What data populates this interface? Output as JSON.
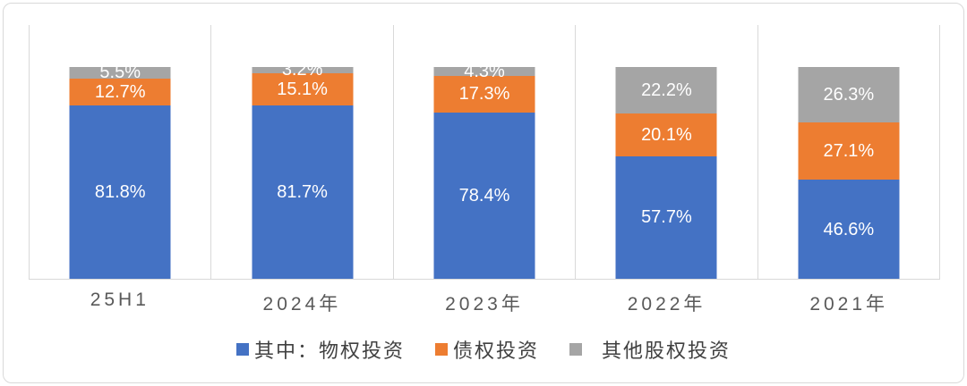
{
  "chart_data": {
    "type": "bar",
    "stacked": true,
    "percent_stacked": true,
    "title": "",
    "categories": [
      "25H1",
      "2024年",
      "2023年",
      "2022年",
      "2021年"
    ],
    "series": [
      {
        "name": "其中：物权投资",
        "color": "#4472C4",
        "values": [
          81.8,
          81.7,
          78.4,
          57.7,
          46.6
        ]
      },
      {
        "name": "债权投资",
        "color": "#ED7D31",
        "values": [
          12.7,
          15.1,
          17.3,
          20.1,
          27.1
        ]
      },
      {
        "name": "其他股权投资",
        "color": "#A5A5A5",
        "values": [
          5.5,
          3.2,
          4.3,
          22.2,
          26.3
        ]
      }
    ],
    "value_suffix": "%",
    "data_labels": true,
    "data_label_color": "#FFFFFF",
    "ylim": [
      0,
      120
    ],
    "value_axis_hidden": true,
    "grid": "vertical-separators",
    "gridline_color": "#D9D9D9",
    "category_label_color": "#595959",
    "legend_position": "bottom",
    "legend_text_color": "#404040",
    "background": "#FFFFFF",
    "border_color": "#D9D9D9"
  }
}
